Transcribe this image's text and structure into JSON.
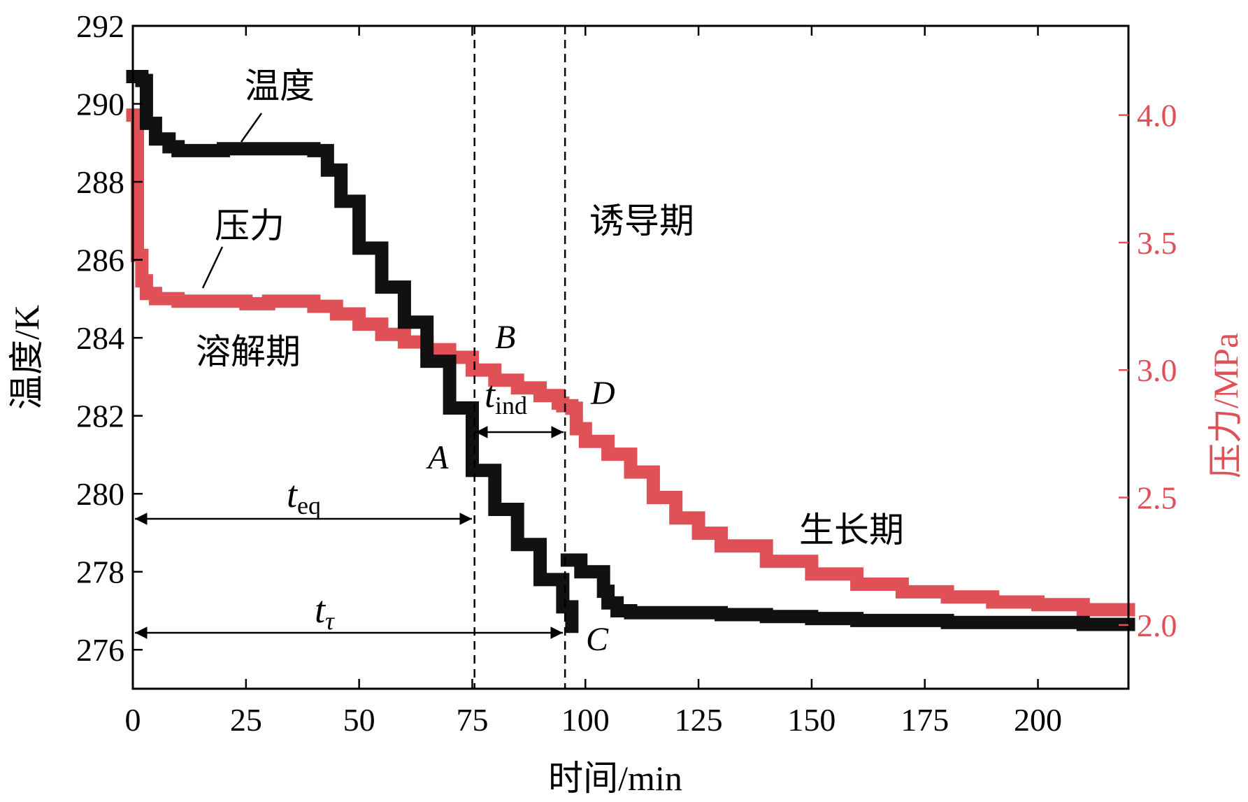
{
  "chart_data": {
    "type": "line",
    "xlabel": "时间/min",
    "ylabel_left": "温度/K",
    "ylabel_right": "压力/MPa",
    "xlim": [
      0,
      220
    ],
    "ylim_left": [
      275,
      292
    ],
    "ylim_right": [
      1.75,
      4.35
    ],
    "x_ticks": [
      0,
      25,
      50,
      75,
      100,
      125,
      150,
      175,
      200
    ],
    "y_ticks_left": [
      276,
      278,
      280,
      282,
      284,
      286,
      288,
      290,
      292
    ],
    "y_ticks_right": [
      2.0,
      2.5,
      3.0,
      3.5,
      4.0
    ],
    "series": [
      {
        "name": "温度",
        "axis": "left",
        "color": "#111111",
        "segments": [
          {
            "x": [
              0,
              2,
              3,
              5,
              8,
              10,
              15,
              20,
              25,
              30,
              35,
              38,
              40,
              43,
              46,
              50,
              55,
              60,
              65,
              70,
              75,
              80,
              85,
              90,
              95,
              97
            ],
            "y": [
              290.7,
              290.6,
              289.5,
              289.1,
              288.9,
              288.8,
              288.8,
              288.85,
              288.85,
              288.85,
              288.85,
              288.85,
              288.8,
              288.3,
              287.5,
              286.3,
              285.3,
              284.4,
              283.4,
              282.2,
              280.6,
              279.6,
              278.7,
              277.8,
              277.1,
              276.6
            ]
          },
          {
            "x": [
              96,
              99,
              102,
              104,
              105,
              107,
              110,
              120,
              130,
              140,
              150,
              160,
              170,
              180,
              190,
              200,
              210,
              220
            ],
            "y": [
              278.3,
              278.0,
              278.0,
              277.5,
              277.2,
              277.0,
              276.95,
              276.95,
              276.9,
              276.85,
              276.8,
              276.75,
              276.75,
              276.7,
              276.7,
              276.7,
              276.65,
              276.65
            ]
          }
        ]
      },
      {
        "name": "压力",
        "axis": "right",
        "color": "#e05057",
        "segments": [
          {
            "x": [
              0,
              1,
              2,
              3,
              5,
              10,
              15,
              20,
              25,
              30,
              35,
              40,
              45,
              50,
              55,
              60,
              65,
              70,
              75,
              80,
              85,
              90,
              94,
              95,
              96,
              97,
              98,
              100,
              105,
              110,
              115,
              120,
              125,
              130,
              140,
              150,
              160,
              170,
              180,
              190,
              200,
              210,
              220
            ],
            "y": [
              4.0,
              3.45,
              3.35,
              3.3,
              3.28,
              3.27,
              3.27,
              3.27,
              3.26,
              3.27,
              3.27,
              3.25,
              3.22,
              3.18,
              3.14,
              3.11,
              3.08,
              3.05,
              3.0,
              2.96,
              2.93,
              2.9,
              2.87,
              2.86,
              2.86,
              2.85,
              2.77,
              2.72,
              2.67,
              2.6,
              2.5,
              2.42,
              2.36,
              2.31,
              2.25,
              2.2,
              2.16,
              2.13,
              2.11,
              2.09,
              2.08,
              2.06,
              2.06
            ]
          }
        ]
      }
    ],
    "vlines": [
      75.5,
      95.5
    ],
    "annotations": {
      "temp_label": "温度",
      "pressure_label": "压力",
      "dissolution": "溶解期",
      "induction": "诱导期",
      "growth": "生长期",
      "point_a": "A",
      "point_b": "B",
      "point_c": "C",
      "point_d": "D",
      "t_eq_main": "t",
      "t_eq_sub": "eq",
      "t_ind_main": "t",
      "t_ind_sub": "ind",
      "t_tau_main": "t",
      "t_tau_sub": "τ"
    }
  }
}
